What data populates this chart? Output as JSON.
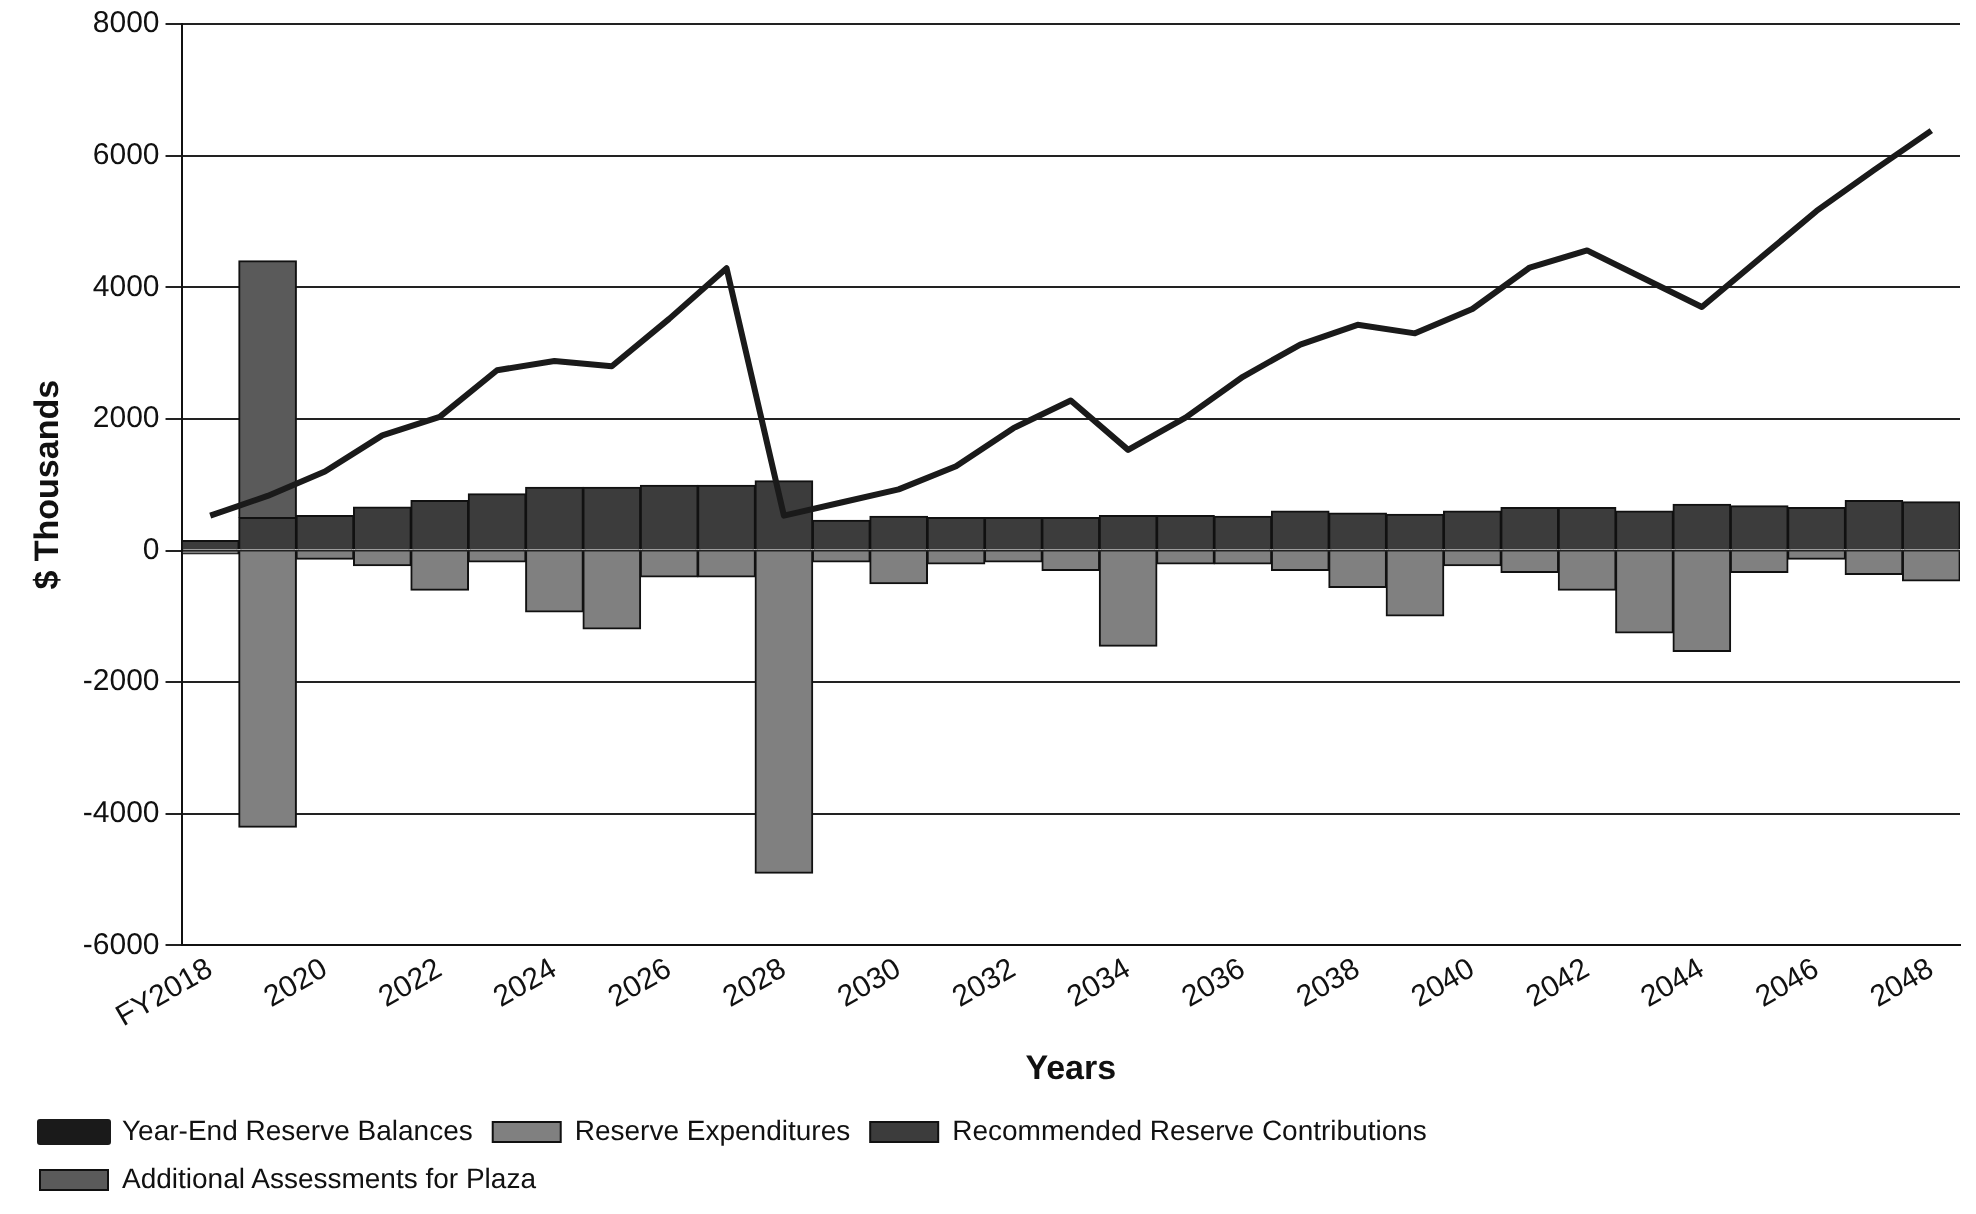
{
  "chart_data": {
    "type": "bar",
    "stacked": true,
    "xlabel": "Years",
    "ylabel": "$ Thousands",
    "categories": [
      "FY2018",
      null,
      "2020",
      null,
      "2022",
      null,
      "2024",
      null,
      "2026",
      null,
      "2028",
      null,
      "2030",
      null,
      "2032",
      null,
      "2034",
      null,
      "2036",
      null,
      "2038",
      null,
      "2040",
      null,
      "2042",
      null,
      "2044",
      null,
      "2046",
      null,
      "2048"
    ],
    "series": [
      {
        "name": "Reserve Expenditures",
        "color": "#808080",
        "values": [
          -50,
          -4200,
          -130,
          -230,
          -600,
          -170,
          -930,
          -1190,
          -400,
          -400,
          -4900,
          -170,
          -500,
          -200,
          -170,
          -300,
          -1450,
          -200,
          -200,
          -300,
          -560,
          -990,
          -230,
          -330,
          -600,
          -1250,
          -1530,
          -330,
          -130,
          -360,
          -460
        ]
      },
      {
        "name": "Recommended Reserve Contributions",
        "color": "#3c3c3c",
        "values": [
          150,
          500,
          530,
          660,
          760,
          860,
          960,
          960,
          990,
          990,
          1060,
          460,
          520,
          500,
          500,
          500,
          530,
          530,
          520,
          600,
          570,
          550,
          600,
          650,
          650,
          600,
          700,
          680,
          650,
          760,
          740
        ]
      },
      {
        "name": "Additional Assessments for Plaza",
        "color": "#5a5a5a",
        "values": [
          null,
          3900,
          null,
          null,
          null,
          null,
          null,
          null,
          null,
          null,
          null,
          null,
          null,
          null,
          null,
          null,
          null,
          null,
          null,
          null,
          null,
          null,
          null,
          null,
          null,
          null,
          null,
          null,
          null,
          null,
          null
        ]
      },
      {
        "name": "Year-End Reserve Balances",
        "type": "line",
        "color": "#1a1a1a",
        "values": [
          530,
          830,
          1200,
          1750,
          2030,
          2740,
          2880,
          2800,
          3520,
          4290,
          530,
          730,
          930,
          1280,
          1860,
          2280,
          1530,
          2020,
          2640,
          3130,
          3430,
          3300,
          3670,
          4300,
          4560,
          4130,
          3700,
          4430,
          5160,
          5780,
          6380
        ]
      }
    ],
    "ylim": [
      -6000,
      8000
    ],
    "yticks": [
      -6000,
      -4000,
      -2000,
      0,
      2000,
      4000,
      6000,
      8000
    ],
    "grid": "y",
    "legend": "bottom left",
    "marker": "none"
  }
}
